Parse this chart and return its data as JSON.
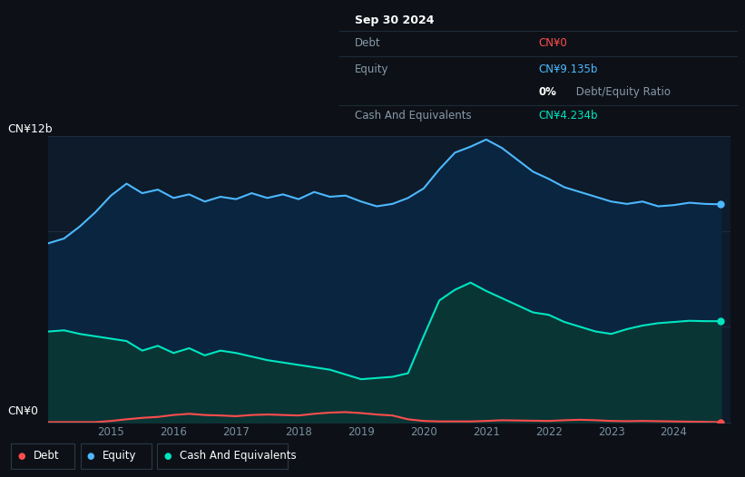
{
  "background_color": "#0d1117",
  "plot_bg_color": "#0d1b2a",
  "title_box": {
    "date": "Sep 30 2024",
    "debt_label": "Debt",
    "debt_value": "CN¥0",
    "equity_label": "Equity",
    "equity_value": "CN¥9.135b",
    "ratio_text": "0% Debt/Equity Ratio",
    "cash_label": "Cash And Equivalents",
    "cash_value": "CN¥4.234b"
  },
  "ylabel_top": "CN¥12b",
  "ylabel_bottom": "CN¥0",
  "x_ticks": [
    "2015",
    "2016",
    "2017",
    "2018",
    "2019",
    "2020",
    "2021",
    "2022",
    "2023",
    "2024"
  ],
  "legend": [
    "Debt",
    "Equity",
    "Cash And Equivalents"
  ],
  "legend_colors": [
    "#ff4d4d",
    "#4db8ff",
    "#00e5c0"
  ],
  "debt_color": "#ff4d4d",
  "equity_color": "#4db8ff",
  "equity_fill_color": "#0a2540",
  "cash_color": "#00e5c0",
  "cash_fill_color": "#0a3535",
  "grid_color": "#1e2d3d",
  "years": [
    2014.0,
    2014.25,
    2014.5,
    2014.75,
    2015.0,
    2015.25,
    2015.5,
    2015.75,
    2016.0,
    2016.25,
    2016.5,
    2016.75,
    2017.0,
    2017.25,
    2017.5,
    2017.75,
    2018.0,
    2018.25,
    2018.5,
    2018.75,
    2019.0,
    2019.25,
    2019.5,
    2019.75,
    2020.0,
    2020.25,
    2020.5,
    2020.75,
    2021.0,
    2021.25,
    2021.5,
    2021.75,
    2022.0,
    2022.25,
    2022.5,
    2022.75,
    2023.0,
    2023.25,
    2023.5,
    2023.75,
    2024.0,
    2024.25,
    2024.5,
    2024.75
  ],
  "equity": [
    7.5,
    7.7,
    8.2,
    8.8,
    9.5,
    10.0,
    9.6,
    9.75,
    9.4,
    9.55,
    9.25,
    9.45,
    9.35,
    9.6,
    9.4,
    9.55,
    9.35,
    9.65,
    9.45,
    9.5,
    9.25,
    9.05,
    9.15,
    9.4,
    9.8,
    10.6,
    11.3,
    11.55,
    11.85,
    11.5,
    11.0,
    10.5,
    10.2,
    9.85,
    9.65,
    9.45,
    9.25,
    9.15,
    9.25,
    9.05,
    9.1,
    9.2,
    9.15,
    9.135
  ],
  "cash": [
    3.8,
    3.85,
    3.7,
    3.6,
    3.5,
    3.4,
    3.0,
    3.2,
    2.9,
    3.1,
    2.8,
    3.0,
    2.9,
    2.75,
    2.6,
    2.5,
    2.4,
    2.3,
    2.2,
    2.0,
    1.8,
    1.85,
    1.9,
    2.05,
    3.6,
    5.1,
    5.55,
    5.85,
    5.5,
    5.2,
    4.9,
    4.6,
    4.5,
    4.2,
    4.0,
    3.8,
    3.7,
    3.9,
    4.05,
    4.15,
    4.2,
    4.25,
    4.234,
    4.234
  ],
  "debt": [
    0.0,
    0.0,
    0.0,
    0.0,
    0.05,
    0.12,
    0.18,
    0.22,
    0.3,
    0.35,
    0.3,
    0.28,
    0.25,
    0.3,
    0.32,
    0.3,
    0.28,
    0.35,
    0.4,
    0.42,
    0.38,
    0.32,
    0.28,
    0.12,
    0.05,
    0.03,
    0.03,
    0.03,
    0.05,
    0.08,
    0.07,
    0.06,
    0.05,
    0.08,
    0.1,
    0.08,
    0.05,
    0.04,
    0.05,
    0.04,
    0.03,
    0.02,
    0.01,
    0.0
  ],
  "ylim": [
    0,
    12
  ],
  "xlim": [
    2014.0,
    2024.9
  ]
}
